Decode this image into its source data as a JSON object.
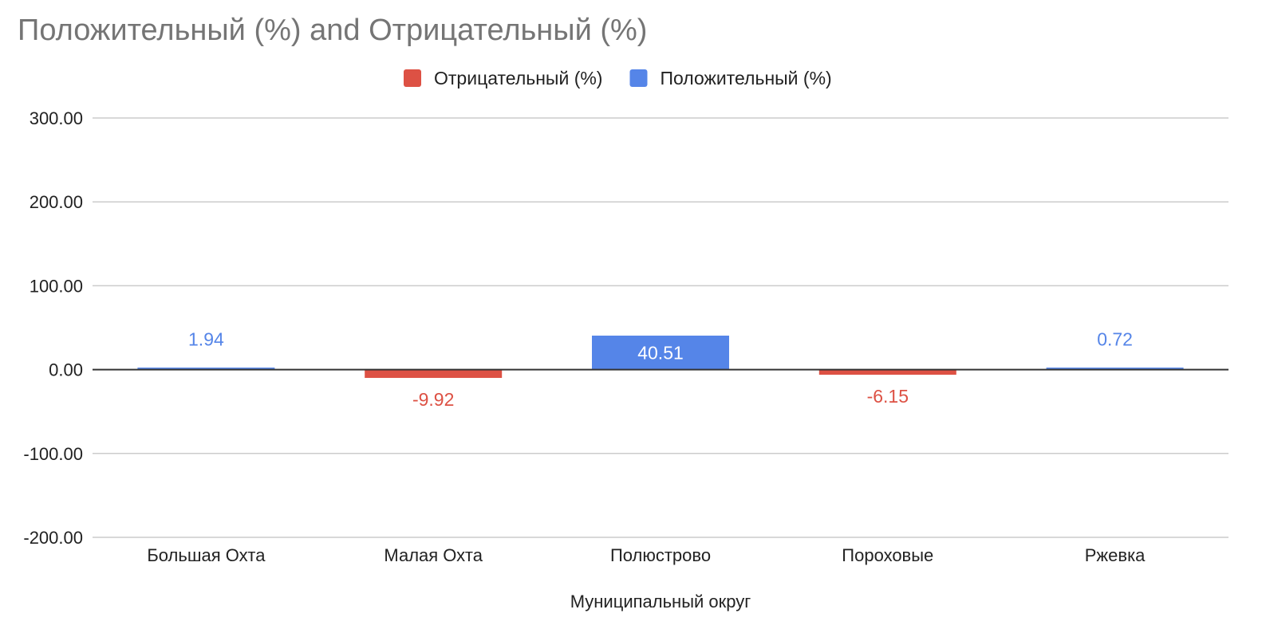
{
  "chart_data": {
    "type": "bar",
    "title": "Положительный (%) and Отрицательный (%)",
    "xlabel": "Муниципальный округ",
    "ylabel": "",
    "categories": [
      "Большая Охта",
      "Малая Охта",
      "Полюстрово",
      "Пороховые",
      "Ржевка"
    ],
    "series": [
      {
        "name": "Отрицательный (%)",
        "color": "#dd5144",
        "values": [
          null,
          -9.92,
          null,
          -6.15,
          null
        ],
        "labels": [
          "",
          "-9.92",
          "",
          "-6.15",
          ""
        ]
      },
      {
        "name": "Положительный (%)",
        "color": "#5585e8",
        "values": [
          1.94,
          null,
          40.51,
          null,
          0.72
        ],
        "labels": [
          "1.94",
          "",
          "40.51",
          "",
          "0.72"
        ]
      }
    ],
    "ylim": [
      -200,
      300
    ],
    "yticks": [
      300,
      200,
      100,
      0,
      -100,
      -200
    ],
    "ytick_labels": [
      "300.00",
      "200.00",
      "100.00",
      "0.00",
      "-100.00",
      "-200.00"
    ],
    "grid": true,
    "legend_position": "top-center"
  }
}
